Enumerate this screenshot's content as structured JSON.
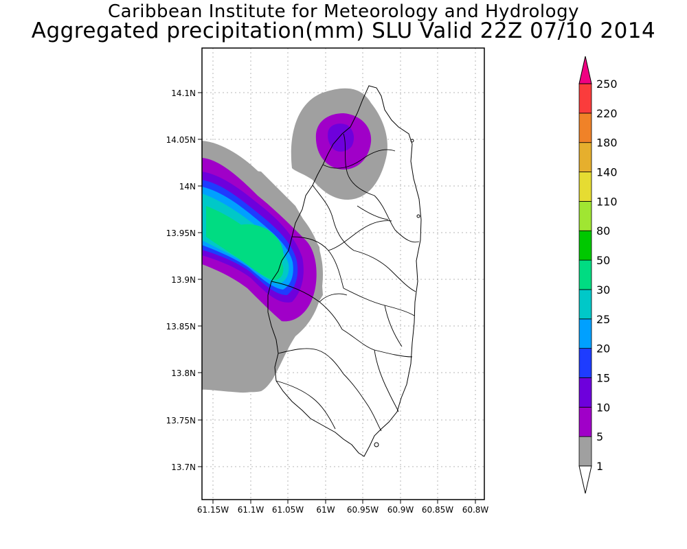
{
  "title": "Caribbean Institute for Meteorology and Hydrology",
  "subtitle": "Aggregated precipitation(mm) SLU Valid 22Z 07/10 2014",
  "map": {
    "lat_labels": [
      "14.1N",
      "14.05N",
      "14N",
      "13.95N",
      "13.9N",
      "13.85N",
      "13.8N",
      "13.75N",
      "13.7N"
    ],
    "lon_labels": [
      "61.15W",
      "61.1W",
      "61.05W",
      "61W",
      "60.95W",
      "60.9W",
      "60.85W",
      "60.8W"
    ],
    "gridlines": "dotted"
  },
  "colorbar": {
    "levels": [
      "1",
      "5",
      "10",
      "15",
      "20",
      "25",
      "30",
      "50",
      "80",
      "110",
      "140",
      "180",
      "220",
      "250"
    ],
    "colors": [
      "#a0a0a0",
      "#a000c8",
      "#6e00dc",
      "#1e3cff",
      "#00a0ff",
      "#00c8c8",
      "#00dc82",
      "#00c800",
      "#a0e632",
      "#e6dc32",
      "#e6af2d",
      "#f08228",
      "#fa3c3c",
      "#f00082"
    ]
  }
}
